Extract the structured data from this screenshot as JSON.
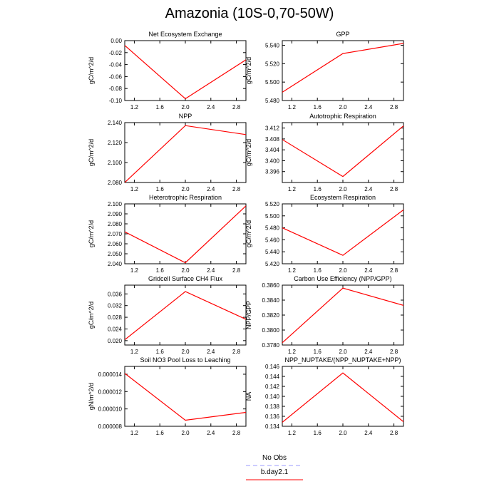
{
  "title": "Amazonia (10S-0,70-50W)",
  "legend": {
    "items": [
      {
        "label": "No Obs",
        "color": "#9a9aff",
        "dash": "dashed"
      },
      {
        "label": "b.day2.1",
        "color": "#ff0000",
        "dash": "solid"
      }
    ]
  },
  "colors": {
    "series": "#ff0000",
    "obs": "#9a9aff"
  },
  "chart_data": [
    {
      "type": "line",
      "title": "Net Ecosystem Exchange",
      "ylabel": "gC/m^2/d",
      "x": [
        1.05,
        2.0,
        2.95
      ],
      "values": [
        -0.008,
        -0.097,
        -0.032
      ],
      "ylim": [
        -0.1,
        0.0
      ],
      "yticks": [
        -0.1,
        -0.08,
        -0.06,
        -0.04,
        -0.02,
        0.0
      ],
      "ytick_labels": [
        "-0.10",
        "-0.08",
        "-0.06",
        "-0.04",
        "-0.02",
        "0.00"
      ]
    },
    {
      "type": "line",
      "title": "GPP",
      "ylabel": "gC/m^2/d",
      "x": [
        1.05,
        2.0,
        2.95
      ],
      "values": [
        5.489,
        5.531,
        5.542
      ],
      "ylim": [
        5.48,
        5.545
      ],
      "yticks": [
        5.48,
        5.5,
        5.52,
        5.54
      ],
      "ytick_labels": [
        "5.480",
        "5.500",
        "5.520",
        "5.540"
      ]
    },
    {
      "type": "line",
      "title": "NPP",
      "ylabel": "gC/m^2/d",
      "x": [
        1.05,
        2.0,
        2.95
      ],
      "values": [
        2.08,
        2.137,
        2.128
      ],
      "ylim": [
        2.08,
        2.14
      ],
      "yticks": [
        2.08,
        2.1,
        2.12,
        2.14
      ],
      "ytick_labels": [
        "2.080",
        "2.100",
        "2.120",
        "2.140"
      ]
    },
    {
      "type": "line",
      "title": "Autotrophic Respiration",
      "ylabel": "gC/m^2/d",
      "x": [
        1.05,
        2.0,
        2.95
      ],
      "values": [
        3.4078,
        3.3942,
        3.4128
      ],
      "ylim": [
        3.392,
        3.414
      ],
      "yticks": [
        3.396,
        3.4,
        3.404,
        3.408,
        3.412
      ],
      "ytick_labels": [
        "3.396",
        "3.400",
        "3.404",
        "3.408",
        "3.412"
      ]
    },
    {
      "type": "line",
      "title": "Heterotrophic Respiration",
      "ylabel": "gC/m^2/d",
      "x": [
        1.05,
        2.0,
        2.95
      ],
      "values": [
        2.072,
        2.041,
        2.098
      ],
      "ylim": [
        2.04,
        2.1
      ],
      "yticks": [
        2.04,
        2.05,
        2.06,
        2.07,
        2.08,
        2.09,
        2.1
      ],
      "ytick_labels": [
        "2.040",
        "2.050",
        "2.060",
        "2.070",
        "2.080",
        "2.090",
        "2.100"
      ]
    },
    {
      "type": "line",
      "title": "Ecosystem Respiration",
      "ylabel": "gC/m^2/d",
      "x": [
        1.05,
        2.0,
        2.95
      ],
      "values": [
        5.48,
        5.434,
        5.51
      ],
      "ylim": [
        5.42,
        5.52
      ],
      "yticks": [
        5.42,
        5.44,
        5.46,
        5.48,
        5.5,
        5.52
      ],
      "ytick_labels": [
        "5.420",
        "5.440",
        "5.460",
        "5.480",
        "5.500",
        "5.520"
      ]
    },
    {
      "type": "line",
      "title": "Gridcell Surface CH4 Flux",
      "ylabel": "gC/m^2/d",
      "x": [
        1.05,
        2.0,
        2.95
      ],
      "values": [
        0.0203,
        0.0368,
        0.0273
      ],
      "ylim": [
        0.0185,
        0.039
      ],
      "yticks": [
        0.02,
        0.024,
        0.028,
        0.032,
        0.036
      ],
      "ytick_labels": [
        "0.020",
        "0.024",
        "0.028",
        "0.032",
        "0.036"
      ]
    },
    {
      "type": "line",
      "title": "Carbon Use Efficiency (NPP/GPP)",
      "ylabel": "NPP/GPP",
      "x": [
        1.05,
        2.0,
        2.95
      ],
      "values": [
        0.3783,
        0.3856,
        0.3833
      ],
      "ylim": [
        0.378,
        0.386
      ],
      "yticks": [
        0.378,
        0.38,
        0.382,
        0.384,
        0.386
      ],
      "ytick_labels": [
        "0.3780",
        "0.3800",
        "0.3820",
        "0.3840",
        "0.3860"
      ]
    },
    {
      "type": "line",
      "title": "Soil NO3 Pool Loss to Leaching",
      "ylabel": "gN/m^2/d",
      "x": [
        1.05,
        2.0,
        2.95
      ],
      "values": [
        1.41e-05,
        8.7e-06,
        9.6e-06
      ],
      "ylim": [
        8e-06,
        1.49e-05
      ],
      "yticks": [
        8e-06,
        1e-05,
        1.2e-05,
        1.4e-05
      ],
      "ytick_labels": [
        "0.000008",
        "0.000010",
        "0.000012",
        "0.000014"
      ]
    },
    {
      "type": "line",
      "title": "NPP_NUPTAKE/(NPP_NUPTAKE+NPP)",
      "ylabel": "NA",
      "x": [
        1.05,
        2.0,
        2.95
      ],
      "values": [
        0.1348,
        0.1447,
        0.1349
      ],
      "ylim": [
        0.134,
        0.146
      ],
      "yticks": [
        0.134,
        0.136,
        0.138,
        0.14,
        0.142,
        0.144,
        0.146
      ],
      "ytick_labels": [
        "0.134",
        "0.136",
        "0.138",
        "0.140",
        "0.142",
        "0.144",
        "0.146"
      ]
    }
  ],
  "xaxis": {
    "xlim": [
      1.05,
      2.95
    ],
    "xticks": [
      1.2,
      1.6,
      2.0,
      2.4,
      2.8
    ],
    "xtick_labels": [
      "1.2",
      "1.6",
      "2.0",
      "2.4",
      "2.8"
    ]
  }
}
